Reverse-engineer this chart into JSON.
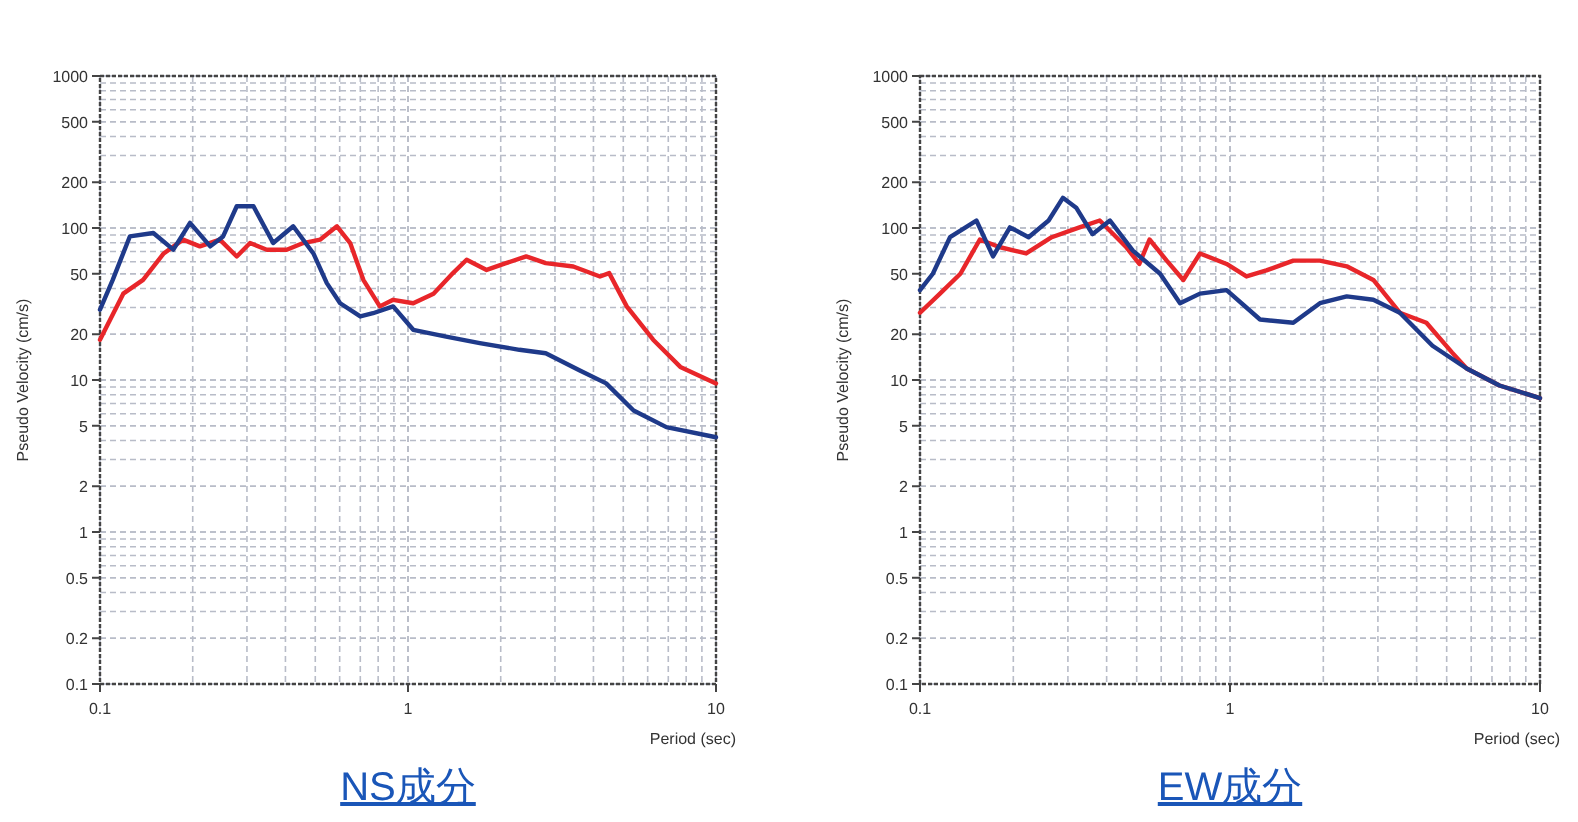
{
  "chart_data": [
    {
      "type": "line",
      "title": "NS成分",
      "xlabel": "Period (sec)",
      "ylabel": "Pseudo Velocity (cm/s)",
      "log": "xy",
      "grid": true,
      "xlim": [
        0.1,
        10
      ],
      "ylim": [
        0.1,
        1000
      ],
      "xticks": [
        0.1,
        1,
        10
      ],
      "yticks": [
        0.1,
        0.2,
        0.5,
        1,
        2,
        5,
        10,
        20,
        50,
        100,
        200,
        500,
        1000
      ],
      "series": [
        {
          "color": "#e8262a",
          "x": [
            0.1,
            0.119,
            0.138,
            0.161,
            0.186,
            0.211,
            0.245,
            0.278,
            0.307,
            0.348,
            0.404,
            0.457,
            0.518,
            0.588,
            0.649,
            0.716,
            0.81,
            0.895,
            1.04,
            1.21,
            1.4,
            1.55,
            1.8,
            2.08,
            2.42,
            2.8,
            3.44,
            4.2,
            4.5,
            5.13,
            6.25,
            7.66,
            10
          ],
          "values": [
            18.4,
            37,
            45.6,
            68,
            83.8,
            75.7,
            83.8,
            65,
            79.6,
            72,
            72,
            79.6,
            83.8,
            102.6,
            79.6,
            45.6,
            30.5,
            33.7,
            32,
            37,
            50.5,
            61.8,
            53,
            58.7,
            65,
            58.7,
            55.8,
            48,
            50.5,
            30.5,
            18.4,
            12.2,
            9.5
          ]
        },
        {
          "color": "#1f3a8a",
          "x": [
            0.1,
            0.11,
            0.125,
            0.149,
            0.173,
            0.196,
            0.228,
            0.251,
            0.278,
            0.315,
            0.365,
            0.424,
            0.493,
            0.545,
            0.602,
            0.7,
            0.77,
            0.895,
            1.04,
            1.33,
            1.71,
            2.3,
            2.8,
            3.6,
            4.4,
            5.4,
            6.9,
            10
          ],
          "values": [
            29,
            45.6,
            88,
            92.7,
            72,
            108,
            75.7,
            88,
            139,
            139,
            79.6,
            102.6,
            68,
            43.4,
            32,
            26.2,
            27.5,
            30.5,
            21.4,
            19.3,
            17.5,
            15.8,
            15,
            11.6,
            9.5,
            6.3,
            4.9,
            4.2
          ]
        }
      ]
    },
    {
      "type": "line",
      "title": "EW成分",
      "xlabel": "Period (sec)",
      "ylabel": "Pseudo Velocity (cm/s)",
      "log": "xy",
      "grid": true,
      "xlim": [
        0.1,
        10
      ],
      "ylim": [
        0.1,
        1000
      ],
      "xticks": [
        0.1,
        1,
        10
      ],
      "yticks": [
        0.1,
        0.2,
        0.5,
        1,
        2,
        5,
        10,
        20,
        50,
        100,
        200,
        500,
        1000
      ],
      "series": [
        {
          "color": "#e8262a",
          "x": [
            0.1,
            0.116,
            0.135,
            0.156,
            0.18,
            0.22,
            0.266,
            0.327,
            0.38,
            0.462,
            0.51,
            0.55,
            0.625,
            0.707,
            0.8,
            0.975,
            1.13,
            1.31,
            1.6,
            1.95,
            2.38,
            2.9,
            3.53,
            4.3,
            5.2,
            5.8,
            7.4,
            10
          ],
          "values": [
            27.7,
            37,
            50,
            84,
            75,
            68,
            87,
            101,
            112,
            75,
            58,
            84,
            61,
            45.5,
            68,
            58,
            48,
            52.6,
            61,
            61,
            56,
            45.5,
            27.7,
            23.8,
            15.2,
            11.9,
            9.2,
            7.6
          ]
        },
        {
          "color": "#1f3a8a",
          "x": [
            0.1,
            0.11,
            0.125,
            0.152,
            0.172,
            0.195,
            0.224,
            0.26,
            0.289,
            0.319,
            0.36,
            0.41,
            0.486,
            0.595,
            0.69,
            0.8,
            0.975,
            1.25,
            1.6,
            1.95,
            2.38,
            2.9,
            3.53,
            4.5,
            5.8,
            7.4,
            10
          ],
          "values": [
            39,
            50,
            87,
            112,
            65,
            101,
            87,
            112,
            158,
            136,
            91,
            112,
            71,
            50,
            32,
            37,
            39,
            25,
            23.8,
            32,
            35.5,
            33.7,
            27.7,
            16.8,
            11.9,
            9.2,
            7.6
          ]
        }
      ]
    }
  ]
}
